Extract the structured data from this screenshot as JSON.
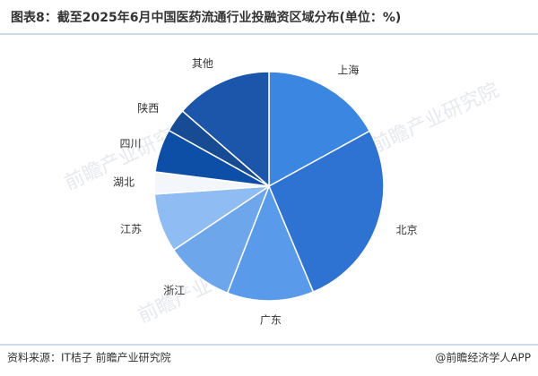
{
  "chart_data": {
    "type": "pie",
    "title": "图表8：截至2025年6月中国医药流通行业投融资区域分布(单位：%)",
    "categories": [
      "上海",
      "北京",
      "广东",
      "浙江",
      "江苏",
      "湖北",
      "四川",
      "陕西",
      "其他"
    ],
    "values": [
      17,
      26.7,
      12.2,
      9.7,
      8.3,
      3.1,
      6.1,
      3.3,
      13.6
    ],
    "colors": [
      "#3a86e0",
      "#2f73d2",
      "#5a9aea",
      "#6ea6ec",
      "#8fbcf2",
      "#f3f6fa",
      "#0d4ea6",
      "#174c94",
      "#1c56aa"
    ],
    "source": "资料来源：IT桔子 前瞻产业研究院",
    "credit": "@前瞻经济学人APP",
    "watermark": "前瞻产业研究院"
  }
}
